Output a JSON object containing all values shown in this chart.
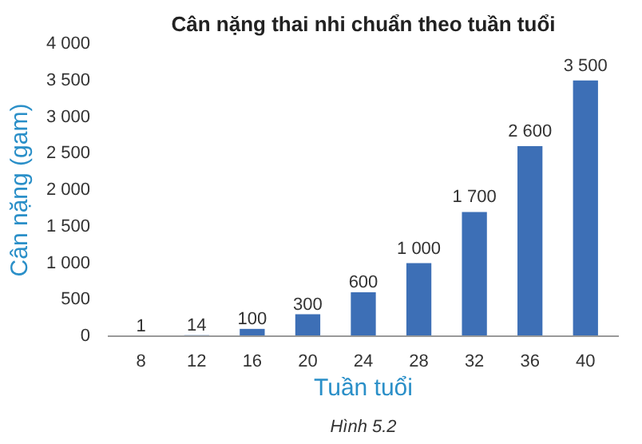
{
  "chart_data": {
    "type": "bar",
    "title": "Cân nặng thai nhi chuẩn theo tuần tuổi",
    "xlabel": "Tuần tuổi",
    "ylabel": "Cân nặng (gam)",
    "categories": [
      "8",
      "12",
      "16",
      "20",
      "24",
      "28",
      "32",
      "36",
      "40"
    ],
    "values": [
      1,
      14,
      100,
      300,
      600,
      1000,
      1700,
      2600,
      3500
    ],
    "value_labels": [
      "1",
      "14",
      "100",
      "300",
      "600",
      "1 000",
      "1 700",
      "2 600",
      "3 500"
    ],
    "color": "#3d6fb6",
    "ylim": [
      0,
      4000
    ],
    "yticks": [
      0,
      {
        "value": 500,
        "label": "500"
      },
      {
        "value": 1000,
        "label": "1 000"
      },
      {
        "value": 1500,
        "label": "1 500"
      },
      {
        "value": 2000,
        "label": "2 000"
      },
      {
        "value": 2500,
        "label": "2 500"
      },
      {
        "value": 3000,
        "label": "3 000"
      },
      {
        "value": 3500,
        "label": "3 500"
      },
      {
        "value": 4000,
        "label": "4 000"
      }
    ],
    "grid": false,
    "annotations": [
      "Hình 5.2"
    ]
  }
}
